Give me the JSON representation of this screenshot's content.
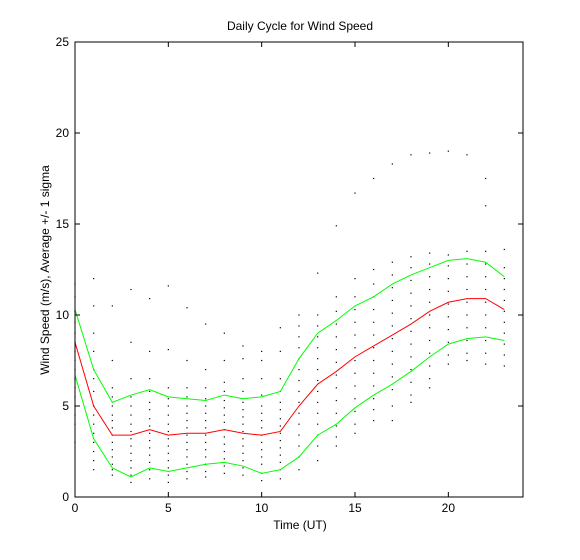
{
  "chart_data": {
    "type": "line",
    "title": "Daily Cycle for Wind Speed",
    "xlabel": "Time (UT)",
    "ylabel": "Wind Speed (m/s), Average +/- 1 sigma",
    "xlim": [
      0,
      24
    ],
    "ylim": [
      0,
      25
    ],
    "xticks": [
      0,
      5,
      10,
      15,
      20
    ],
    "yticks": [
      0,
      5,
      10,
      15,
      20,
      25
    ],
    "grid": false,
    "legend": "none",
    "colors": {
      "mean": "#ff0000",
      "sigma": "#00ff00",
      "observations": "#000000",
      "axes": "#000000"
    },
    "x": [
      0,
      1,
      2,
      3,
      4,
      5,
      6,
      7,
      8,
      9,
      10,
      11,
      12,
      13,
      14,
      15,
      16,
      17,
      18,
      19,
      20,
      21,
      22,
      23
    ],
    "series": [
      {
        "role": "mean",
        "values": [
          8.5,
          5.0,
          3.4,
          3.4,
          3.7,
          3.4,
          3.5,
          3.5,
          3.7,
          3.5,
          3.4,
          3.6,
          5.0,
          6.2,
          6.9,
          7.7,
          8.3,
          8.9,
          9.5,
          10.2,
          10.7,
          10.9,
          10.9,
          10.3
        ]
      },
      {
        "role": "upper",
        "values": [
          10.3,
          7.0,
          5.2,
          5.6,
          5.9,
          5.5,
          5.4,
          5.3,
          5.6,
          5.4,
          5.5,
          5.8,
          7.6,
          9.0,
          9.7,
          10.5,
          11.0,
          11.7,
          12.2,
          12.6,
          13.0,
          13.1,
          12.9,
          12.1
        ]
      },
      {
        "role": "lower",
        "values": [
          6.7,
          3.2,
          1.6,
          1.1,
          1.6,
          1.4,
          1.6,
          1.8,
          1.9,
          1.7,
          1.3,
          1.5,
          2.2,
          3.4,
          4.0,
          4.9,
          5.6,
          6.2,
          6.9,
          7.7,
          8.4,
          8.7,
          8.8,
          8.6
        ]
      }
    ],
    "observations": [
      {
        "x": 0,
        "y": [
          11.7,
          11.0,
          10.2,
          9.6,
          9.0,
          8.5,
          8.0,
          7.5,
          7.0,
          6.5,
          6.0,
          5.5,
          5.0,
          4.5,
          4.0,
          3.0
        ]
      },
      {
        "x": 1,
        "y": [
          12.0,
          10.5,
          9.0,
          8.0,
          7.0,
          6.5,
          5.8,
          5.0,
          4.5,
          4.0,
          3.5,
          3.0,
          2.5,
          2.0,
          1.5
        ]
      },
      {
        "x": 2,
        "y": [
          10.5,
          7.5,
          6.0,
          5.5,
          5.0,
          4.5,
          4.2,
          3.8,
          3.4,
          3.0,
          2.6,
          2.2,
          1.8,
          1.5,
          1.2
        ]
      },
      {
        "x": 3,
        "y": [
          11.4,
          8.5,
          6.5,
          5.5,
          5.0,
          4.5,
          4.0,
          3.6,
          3.2,
          2.8,
          2.4,
          2.0,
          1.6,
          1.2,
          0.8
        ]
      },
      {
        "x": 4,
        "y": [
          10.9,
          8.0,
          6.5,
          5.8,
          5.2,
          4.8,
          4.3,
          3.9,
          3.5,
          3.1,
          2.7,
          2.3,
          1.9,
          1.5,
          1.0
        ]
      },
      {
        "x": 5,
        "y": [
          11.6,
          8.1,
          6.0,
          5.4,
          5.0,
          4.5,
          4.0,
          3.6,
          3.2,
          2.8,
          2.4,
          2.0,
          1.6,
          1.2,
          0.8
        ]
      },
      {
        "x": 6,
        "y": [
          10.4,
          7.5,
          6.0,
          5.5,
          5.0,
          4.6,
          4.2,
          3.8,
          3.4,
          3.0,
          2.6,
          2.2,
          1.8,
          1.4,
          1.0
        ]
      },
      {
        "x": 7,
        "y": [
          9.5,
          7.0,
          6.0,
          5.4,
          5.0,
          4.6,
          4.2,
          3.8,
          3.4,
          3.0,
          2.6,
          2.2,
          1.8,
          1.4,
          1.1
        ]
      },
      {
        "x": 8,
        "y": [
          9.0,
          7.5,
          6.3,
          5.8,
          5.3,
          4.9,
          4.5,
          4.1,
          3.7,
          3.3,
          2.9,
          2.5,
          2.1,
          1.7,
          1.3
        ]
      },
      {
        "x": 9,
        "y": [
          8.3,
          7.6,
          6.5,
          5.8,
          5.2,
          4.8,
          4.4,
          4.0,
          3.6,
          3.2,
          2.8,
          2.4,
          2.0,
          1.6,
          1.2
        ]
      },
      {
        "x": 10,
        "y": [
          8.0,
          7.5,
          6.5,
          5.6,
          5.0,
          4.6,
          4.2,
          3.8,
          3.4,
          3.0,
          2.6,
          2.2,
          1.8,
          1.3,
          0.9
        ]
      },
      {
        "x": 11,
        "y": [
          9.3,
          8.0,
          6.5,
          5.8,
          5.2,
          4.8,
          4.3,
          3.9,
          3.5,
          3.1,
          2.7,
          2.3,
          1.9,
          1.5,
          1.0
        ]
      },
      {
        "x": 12,
        "y": [
          10.0,
          9.4,
          8.8,
          8.2,
          7.6,
          7.0,
          6.4,
          5.8,
          5.2,
          4.6,
          4.0,
          3.4,
          2.8,
          2.2,
          1.5
        ]
      },
      {
        "x": 13,
        "y": [
          12.3,
          10.0,
          9.4,
          8.8,
          8.2,
          7.6,
          7.0,
          6.4,
          5.8,
          5.2,
          4.6,
          4.0,
          3.4,
          2.8,
          2.0
        ]
      },
      {
        "x": 14,
        "y": [
          14.9,
          11.0,
          10.2,
          9.5,
          8.8,
          8.1,
          7.4,
          6.7,
          6.0,
          5.3,
          4.6,
          3.9,
          3.3,
          2.8
        ]
      },
      {
        "x": 15,
        "y": [
          16.7,
          12.0,
          11.0,
          10.3,
          9.6,
          8.9,
          8.2,
          7.5,
          6.8,
          6.1,
          5.4,
          4.7,
          4.0,
          3.5
        ]
      },
      {
        "x": 16,
        "y": [
          17.5,
          12.5,
          11.7,
          11.0,
          10.3,
          9.6,
          8.9,
          8.2,
          7.5,
          6.8,
          6.1,
          5.4,
          4.8,
          4.2
        ]
      },
      {
        "x": 17,
        "y": [
          18.3,
          12.9,
          12.2,
          11.5,
          10.8,
          10.1,
          9.4,
          8.7,
          8.0,
          7.3,
          6.6,
          5.9,
          5.0,
          4.2
        ]
      },
      {
        "x": 18,
        "y": [
          18.8,
          13.2,
          12.6,
          11.9,
          11.2,
          10.5,
          9.8,
          9.1,
          8.4,
          7.7,
          7.0,
          6.3,
          5.6,
          5.2
        ]
      },
      {
        "x": 19,
        "y": [
          18.9,
          13.4,
          12.8,
          12.1,
          11.4,
          10.7,
          10.0,
          9.3,
          8.6,
          7.9,
          7.2,
          6.5,
          6.0
        ]
      },
      {
        "x": 20,
        "y": [
          19.0,
          13.3,
          12.7,
          12.0,
          11.3,
          10.6,
          9.9,
          9.2,
          8.5,
          7.8,
          7.3
        ]
      },
      {
        "x": 21,
        "y": [
          18.8,
          13.5,
          12.8,
          12.1,
          11.4,
          10.7,
          10.0,
          9.3,
          8.6,
          7.9,
          7.5
        ]
      },
      {
        "x": 22,
        "y": [
          17.5,
          16.0,
          13.5,
          12.8,
          12.1,
          11.4,
          10.7,
          10.0,
          9.3,
          8.6,
          7.9,
          7.3
        ]
      },
      {
        "x": 23,
        "y": [
          13.6,
          12.6,
          12.0,
          11.4,
          10.8,
          10.2,
          9.6,
          9.0,
          8.4,
          7.8,
          7.2
        ]
      }
    ]
  }
}
